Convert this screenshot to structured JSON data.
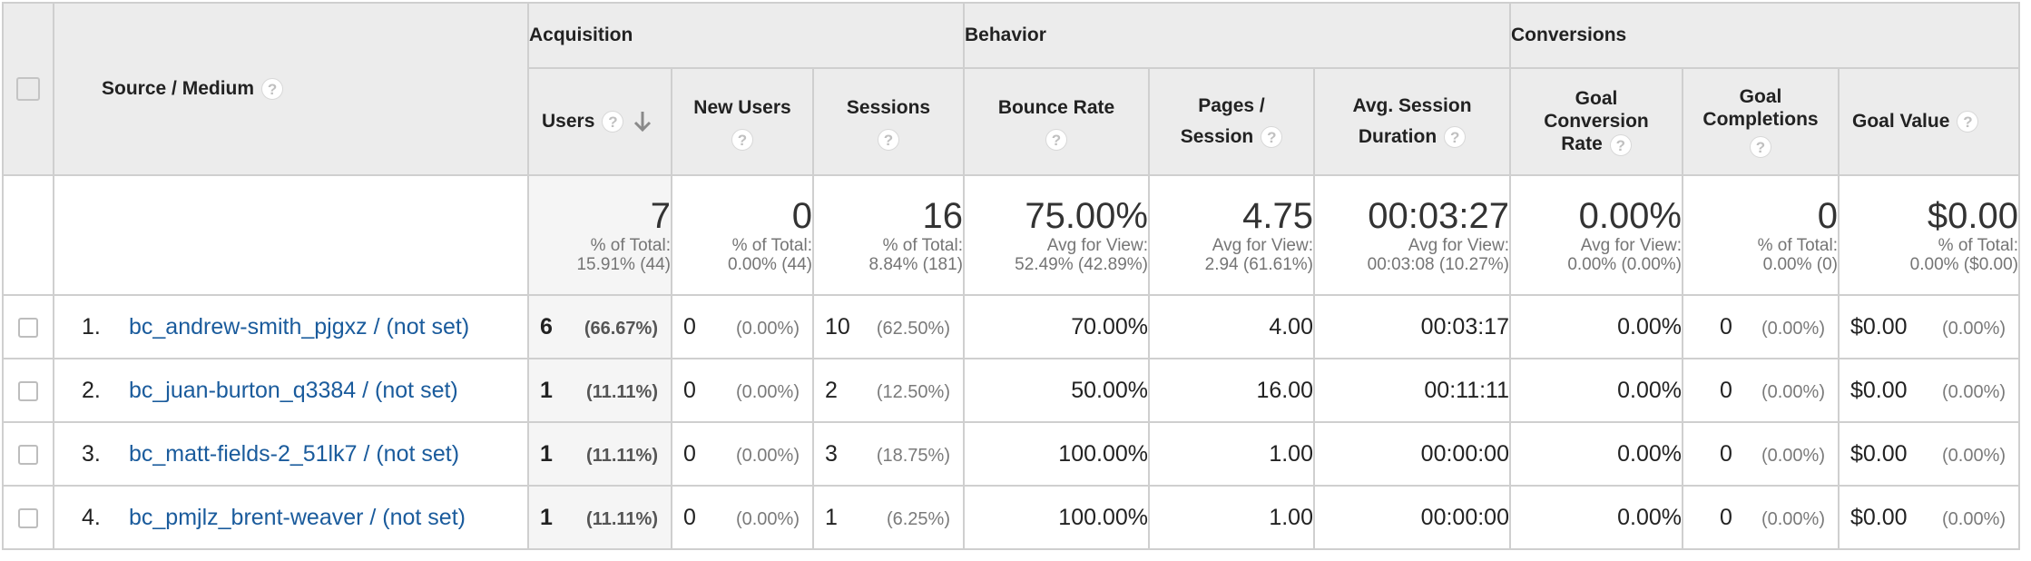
{
  "groups": {
    "acquisition": "Acquisition",
    "behavior": "Behavior",
    "conversions": "Conversions"
  },
  "headers": {
    "source_medium": "Source / Medium",
    "users": "Users",
    "new_users": "New Users",
    "sessions": "Sessions",
    "bounce_rate": "Bounce Rate",
    "pages_session_1": "Pages /",
    "pages_session_2": "Session",
    "avg_session_1": "Avg. Session",
    "avg_session_2": "Duration",
    "goal_conv_1": "Goal",
    "goal_conv_2": "Conversion",
    "goal_conv_3": "Rate",
    "goal_comp_1": "Goal",
    "goal_comp_2": "Completions",
    "goal_value": "Goal Value",
    "help_glyph": "?"
  },
  "totals": {
    "users": {
      "value": "7",
      "line1": "% of Total:",
      "line2": "15.91% (44)"
    },
    "new_users": {
      "value": "0",
      "line1": "% of Total:",
      "line2": "0.00% (44)"
    },
    "sessions": {
      "value": "16",
      "line1": "% of Total:",
      "line2": "8.84% (181)"
    },
    "bounce_rate": {
      "value": "75.00%",
      "line1": "Avg for View:",
      "line2": "52.49% (42.89%)"
    },
    "pages_session": {
      "value": "4.75",
      "line1": "Avg for View:",
      "line2": "2.94 (61.61%)"
    },
    "avg_session_duration": {
      "value": "00:03:27",
      "line1": "Avg for View:",
      "line2": "00:03:08 (10.27%)"
    },
    "goal_conversion_rate": {
      "value": "0.00%",
      "line1": "Avg for View:",
      "line2": "0.00% (0.00%)"
    },
    "goal_completions": {
      "value": "0",
      "line1": "% of Total:",
      "line2": "0.00% (0)"
    },
    "goal_value": {
      "value": "$0.00",
      "line1": "% of Total:",
      "line2": "0.00% ($0.00)"
    }
  },
  "rows": [
    {
      "index": "1.",
      "source": "bc_andrew-smith_pjgxz / (not set)",
      "users": "6",
      "users_pct": "(66.67%)",
      "new_users": "0",
      "new_users_pct": "(0.00%)",
      "sessions": "10",
      "sessions_pct": "(62.50%)",
      "bounce_rate": "70.00%",
      "pages_session": "4.00",
      "avg_session_duration": "00:03:17",
      "goal_conversion_rate": "0.00%",
      "goal_completions": "0",
      "goal_completions_pct": "(0.00%)",
      "goal_value": "$0.00",
      "goal_value_pct": "(0.00%)"
    },
    {
      "index": "2.",
      "source": "bc_juan-burton_q3384 / (not set)",
      "users": "1",
      "users_pct": "(11.11%)",
      "new_users": "0",
      "new_users_pct": "(0.00%)",
      "sessions": "2",
      "sessions_pct": "(12.50%)",
      "bounce_rate": "50.00%",
      "pages_session": "16.00",
      "avg_session_duration": "00:11:11",
      "goal_conversion_rate": "0.00%",
      "goal_completions": "0",
      "goal_completions_pct": "(0.00%)",
      "goal_value": "$0.00",
      "goal_value_pct": "(0.00%)"
    },
    {
      "index": "3.",
      "source": "bc_matt-fields-2_51lk7 / (not set)",
      "users": "1",
      "users_pct": "(11.11%)",
      "new_users": "0",
      "new_users_pct": "(0.00%)",
      "sessions": "3",
      "sessions_pct": "(18.75%)",
      "bounce_rate": "100.00%",
      "pages_session": "1.00",
      "avg_session_duration": "00:00:00",
      "goal_conversion_rate": "0.00%",
      "goal_completions": "0",
      "goal_completions_pct": "(0.00%)",
      "goal_value": "$0.00",
      "goal_value_pct": "(0.00%)"
    },
    {
      "index": "4.",
      "source": "bc_pmjlz_brent-weaver / (not set)",
      "users": "1",
      "users_pct": "(11.11%)",
      "new_users": "0",
      "new_users_pct": "(0.00%)",
      "sessions": "1",
      "sessions_pct": "(6.25%)",
      "bounce_rate": "100.00%",
      "pages_session": "1.00",
      "avg_session_duration": "00:00:00",
      "goal_conversion_rate": "0.00%",
      "goal_completions": "0",
      "goal_completions_pct": "(0.00%)",
      "goal_value": "$0.00",
      "goal_value_pct": "(0.00%)"
    }
  ],
  "icons": {
    "help": "help-icon",
    "sort": "sort-descending-arrow-icon",
    "checkbox": "checkbox"
  },
  "colors": {
    "link": "#1a5b9c",
    "header_bg": "#ececec",
    "sorted_column_bg": "#f5f5f5"
  }
}
